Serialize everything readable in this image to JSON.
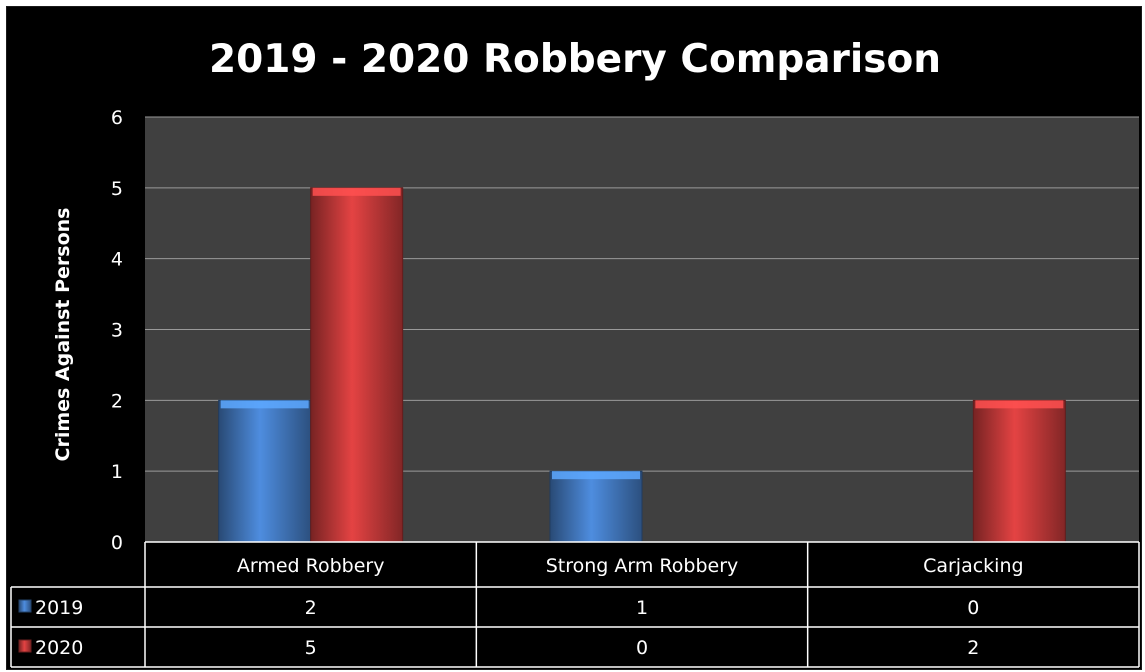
{
  "chart_data": {
    "type": "bar",
    "title": "2019 - 2020 Robbery Comparison",
    "xlabel": "",
    "ylabel": "Crimes Against Persons",
    "categories": [
      "Armed Robbery",
      "Strong Arm Robbery",
      "Carjacking"
    ],
    "series": [
      {
        "name": "2019",
        "values": [
          2,
          1,
          0
        ],
        "color": "#4a86d4"
      },
      {
        "name": "2020",
        "values": [
          5,
          0,
          2
        ],
        "color": "#d94040"
      }
    ],
    "ylim": [
      0,
      6
    ],
    "yticks": [
      "0",
      "1",
      "2",
      "3",
      "4",
      "5",
      "6"
    ],
    "grid": true,
    "legend": "data table",
    "data_table": {
      "rows": [
        {
          "label": "2019",
          "cells": [
            "2",
            "1",
            "0"
          ]
        },
        {
          "label": "2020",
          "cells": [
            "5",
            "0",
            "2"
          ]
        }
      ]
    },
    "colors": {
      "background": "#000000",
      "plot_area": "#404040",
      "gridline": "#9a9a9a",
      "text": "#ffffff"
    }
  }
}
